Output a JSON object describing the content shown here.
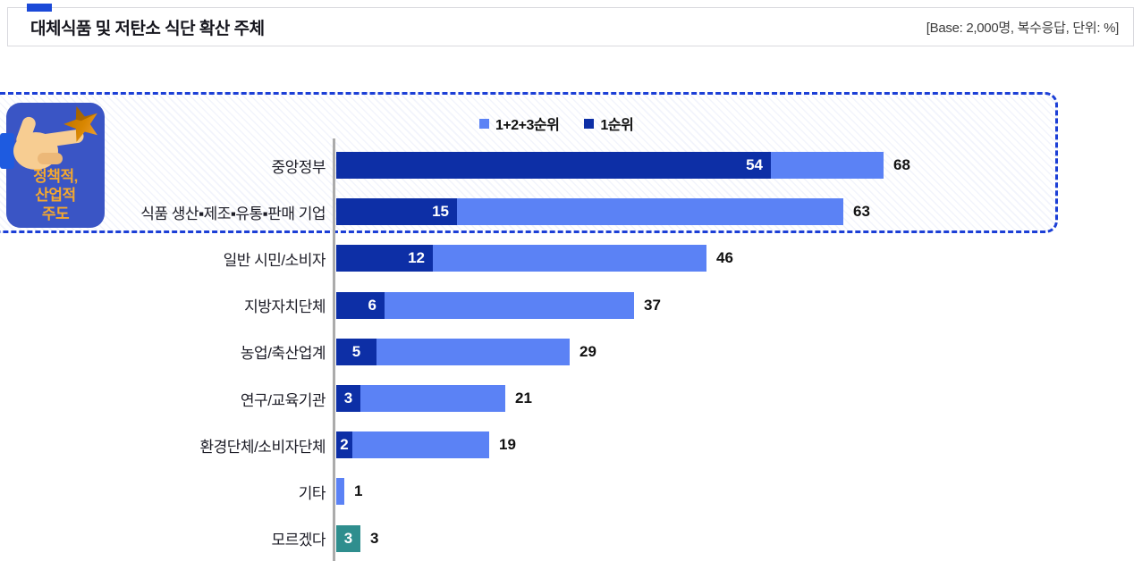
{
  "header": {
    "title": "대체식품 및 저탄소 식단 확산 주체",
    "base_info": "[Base: 2,000명, 복수응답, 단위: %]"
  },
  "badge": {
    "icon": "hand-pointing-star",
    "lines": {
      "0": "정책적,",
      "1": "산업적",
      "2": "주도"
    }
  },
  "legend": [
    {
      "label": "1+2+3순위",
      "color": "#5b82f5"
    },
    {
      "label": "1순위",
      "color": "#0d2fa6"
    }
  ],
  "chart_data": {
    "type": "bar",
    "orientation": "horizontal",
    "title": "대체식품 및 저탄소 식단 확산 주체",
    "unit": "%",
    "base": "2,000명, 복수응답",
    "xlim": [
      0,
      75
    ],
    "series_names": [
      "1+2+3순위",
      "1순위"
    ],
    "categories": [
      "중앙정부",
      "식품 생산▪제조▪유통▪판매 기업",
      "일반 시민/소비자",
      "지방자치단체",
      "농업/축산업계",
      "연구/교육기관",
      "환경단체/소비자단체",
      "기타",
      "모르겠다"
    ],
    "rows": [
      {
        "label": "중앙정부",
        "first": 54,
        "total": 68
      },
      {
        "label": "식품 생산▪제조▪유통▪판매 기업",
        "first": 15,
        "total": 63
      },
      {
        "label": "일반 시민/소비자",
        "first": 12,
        "total": 46
      },
      {
        "label": "지방자치단체",
        "first": 6,
        "total": 37
      },
      {
        "label": "농업/축산업계",
        "first": 5,
        "total": 29
      },
      {
        "label": "연구/교육기관",
        "first": 3,
        "total": 21
      },
      {
        "label": "환경단체/소비자단체",
        "first": 2,
        "total": 19
      },
      {
        "label": "기타",
        "first": null,
        "total": 1
      },
      {
        "label": "모르겠다",
        "first": null,
        "total": 3,
        "special_color": "#2f8e8e",
        "inside_value": 3
      }
    ],
    "colors": {
      "first_rank": "#0d2fa6",
      "total_rank": "#5b82f5",
      "dont_know": "#2f8e8e"
    },
    "annotation_box": "상위 2개 항목 강조 (정책적, 산업적 주도)"
  }
}
